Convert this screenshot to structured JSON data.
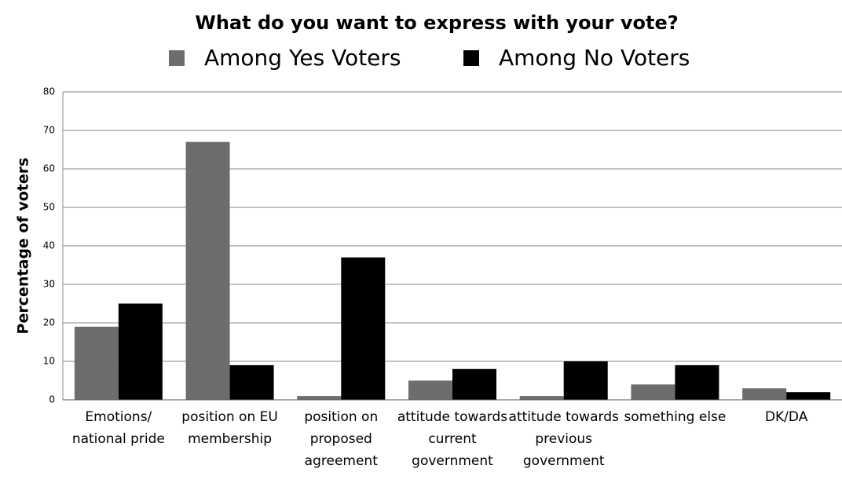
{
  "chart_data": {
    "type": "bar",
    "title": "What do you want to express with your vote?",
    "y_label": "Percentage of voters",
    "categories": [
      "Emotions/ national pride",
      "position on EU membership",
      "position on proposed agreement",
      "attitude towards current government",
      "attitude towards previous government",
      "something else",
      "DK/DA"
    ],
    "series": [
      {
        "name": "Among Yes Voters",
        "color": "#6d6d6d",
        "values": [
          19,
          67,
          1,
          5,
          1,
          4,
          3
        ]
      },
      {
        "name": "Among No Voters",
        "color": "#000000",
        "values": [
          25,
          9,
          37,
          8,
          10,
          9,
          2
        ]
      }
    ],
    "ylim": [
      0,
      80
    ],
    "yticks": [
      0,
      10,
      20,
      30,
      40,
      50,
      60,
      70,
      80
    ],
    "grid": true,
    "legend": "top"
  }
}
